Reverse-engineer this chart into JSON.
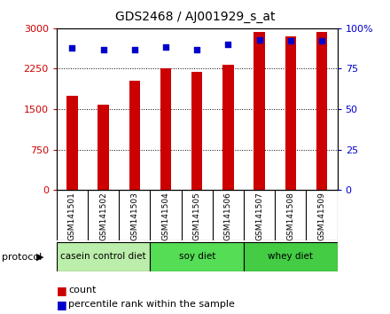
{
  "title": "GDS2468 / AJ001929_s_at",
  "samples": [
    "GSM141501",
    "GSM141502",
    "GSM141503",
    "GSM141504",
    "GSM141505",
    "GSM141506",
    "GSM141507",
    "GSM141508",
    "GSM141509"
  ],
  "counts": [
    1750,
    1575,
    2025,
    2260,
    2190,
    2320,
    2940,
    2850,
    2930
  ],
  "percentiles": [
    88,
    87,
    87,
    88.5,
    87,
    90,
    93,
    92,
    92
  ],
  "bar_color": "#cc0000",
  "dot_color": "#0000cc",
  "ylim_left": [
    0,
    3000
  ],
  "ylim_right": [
    0,
    100
  ],
  "yticks_left": [
    0,
    750,
    1500,
    2250,
    3000
  ],
  "ytick_labels_left": [
    "0",
    "750",
    "1500",
    "2250",
    "3000"
  ],
  "yticks_right": [
    0,
    25,
    50,
    75,
    100
  ],
  "ytick_labels_right": [
    "0",
    "25",
    "50",
    "75",
    "100%"
  ],
  "groups": [
    {
      "label": "casein control diet",
      "start": 0,
      "end": 2,
      "color": "#bbeeaa"
    },
    {
      "label": "soy diet",
      "start": 3,
      "end": 5,
      "color": "#55dd55"
    },
    {
      "label": "whey diet",
      "start": 6,
      "end": 8,
      "color": "#44cc44"
    }
  ],
  "protocol_label": "protocol",
  "legend_count_label": "count",
  "legend_pct_label": "percentile rank within the sample",
  "background_color": "#ffffff",
  "tick_label_color_left": "#cc0000",
  "tick_label_color_right": "#0000cc",
  "bar_width": 0.35,
  "xlabelbox_color": "#cccccc",
  "n": 9
}
